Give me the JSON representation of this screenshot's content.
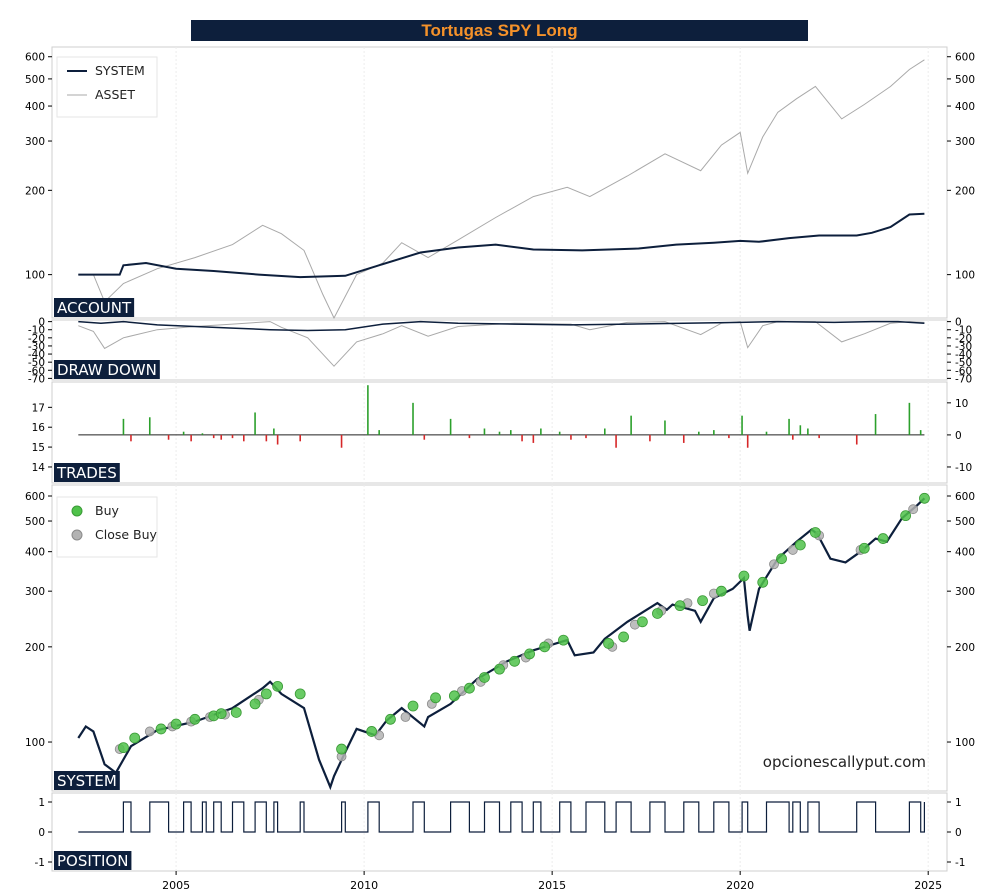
{
  "title": "Tortugas SPY Long",
  "watermark": "opcionescallyput.com",
  "colors": {
    "navy": "#0d1f3c",
    "asset_gray": "#a9a9a9",
    "title_orange": "#f5922a",
    "trade_green": "#2ca02c",
    "trade_red": "#d62728",
    "buy_marker": "#4fc24a",
    "close_marker": "#b3b3b3"
  },
  "x_axis": {
    "tick_labels": [
      "2005",
      "2010",
      "2015",
      "2020",
      "2025"
    ]
  },
  "chart_data": [
    {
      "type": "line",
      "panel_label": "ACCOUNT",
      "scale": "log",
      "y_ticks": [
        100,
        200,
        300,
        400,
        500,
        600
      ],
      "ylim": [
        70,
        650
      ],
      "legend": {
        "position": "top-left",
        "entries": [
          "SYSTEM",
          "ASSET"
        ]
      },
      "series": [
        {
          "name": "SYSTEM",
          "x": [
            2002.4,
            2003.5,
            2003.6,
            2004.2,
            2005,
            2006,
            2007.2,
            2008.3,
            2009.5,
            2010.3,
            2011.5,
            2012.5,
            2013.5,
            2014.5,
            2015.8,
            2017.3,
            2018.3,
            2019.3,
            2020,
            2020.5,
            2021.3,
            2022.1,
            2023.1,
            2023.5,
            2024,
            2024.5,
            2024.9
          ],
          "y": [
            100,
            100,
            108,
            110,
            105,
            103,
            100,
            98,
            99,
            107,
            120,
            125,
            128,
            123,
            122,
            124,
            128,
            130,
            132,
            131,
            135,
            138,
            138,
            141,
            148,
            164,
            165
          ]
        },
        {
          "name": "ASSET",
          "x": [
            2002.4,
            2002.8,
            2003.1,
            2003.6,
            2004.5,
            2005.5,
            2006.5,
            2007.3,
            2007.8,
            2008.4,
            2008.9,
            2009.2,
            2009.8,
            2010.5,
            2011,
            2011.7,
            2012.5,
            2013.5,
            2014.5,
            2015.4,
            2016,
            2017,
            2018,
            2018.95,
            2019.5,
            2020,
            2020.2,
            2020.6,
            2021,
            2021.5,
            2022,
            2022.7,
            2023.3,
            2024,
            2024.5,
            2024.9
          ],
          "y": [
            100,
            100,
            80,
            93,
            105,
            115,
            128,
            150,
            140,
            122,
            85,
            70,
            100,
            110,
            130,
            115,
            133,
            160,
            190,
            205,
            190,
            225,
            270,
            235,
            290,
            322,
            230,
            310,
            380,
            425,
            470,
            360,
            405,
            470,
            540,
            585
          ]
        }
      ]
    },
    {
      "type": "line",
      "panel_label": "DRAW DOWN",
      "scale": "linear",
      "y_ticks": [
        0,
        -10,
        -20,
        -30,
        -40,
        -50,
        -60,
        -70
      ],
      "ylim": [
        -72,
        2
      ],
      "series": [
        {
          "name": "SYSTEM",
          "x": [
            2002.4,
            2003,
            2003.6,
            2004.5,
            2005.5,
            2006.5,
            2007.5,
            2008.5,
            2009.5,
            2010.5,
            2011.5,
            2012.5,
            2014,
            2015.5,
            2017,
            2018.5,
            2020,
            2021,
            2022.5,
            2023.5,
            2024.2,
            2024.9
          ],
          "y": [
            0,
            -2,
            0,
            -4,
            -6,
            -8,
            -10,
            -11,
            -10,
            -3,
            0,
            -2,
            -3,
            -4,
            -3,
            -2,
            -1,
            0,
            -1,
            0,
            0,
            -2
          ]
        },
        {
          "name": "ASSET",
          "x": [
            2002.4,
            2002.8,
            2003.1,
            2003.6,
            2004.5,
            2005.5,
            2006.5,
            2007.5,
            2007.8,
            2008.5,
            2009.2,
            2009.8,
            2010.5,
            2011,
            2011.7,
            2012.5,
            2014,
            2015.5,
            2016,
            2017,
            2018,
            2018.95,
            2019.5,
            2020,
            2020.2,
            2020.6,
            2021,
            2022,
            2022.7,
            2023.3,
            2024,
            2024.5,
            2024.9
          ],
          "y": [
            -5,
            -12,
            -33,
            -20,
            -10,
            -6,
            -3,
            0,
            -7,
            -20,
            -55,
            -25,
            -15,
            -5,
            -18,
            -6,
            -2,
            -3,
            -10,
            -1,
            0,
            -16,
            -2,
            0,
            -32,
            -5,
            0,
            0,
            -25,
            -15,
            -2,
            0,
            -1
          ]
        }
      ]
    },
    {
      "type": "bar",
      "panel_label": "TRADES",
      "left_y_ticks": [
        14,
        15,
        16,
        17
      ],
      "right_y_ticks": [
        10,
        0,
        -10
      ],
      "ylim": [
        -15,
        16.5
      ],
      "x": [
        2003.6,
        2003.8,
        2004.3,
        2004.8,
        2005.2,
        2005.4,
        2005.7,
        2006,
        2006.2,
        2006.5,
        2006.8,
        2007.1,
        2007.4,
        2007.6,
        2007.7,
        2008.3,
        2009.4,
        2010.1,
        2010.4,
        2011.3,
        2011.6,
        2012.3,
        2012.8,
        2013.2,
        2013.6,
        2013.9,
        2014.2,
        2014.5,
        2014.7,
        2015.2,
        2015.5,
        2015.9,
        2016.4,
        2016.7,
        2017.1,
        2017.6,
        2018,
        2018.5,
        2018.9,
        2019.3,
        2019.7,
        2020.05,
        2020.2,
        2020.7,
        2021.3,
        2021.4,
        2021.6,
        2021.8,
        2022.1,
        2023.1,
        2023.6,
        2024.5,
        2024.8
      ],
      "values": [
        5,
        -2,
        5.5,
        -1.5,
        1,
        -2,
        0.5,
        -1,
        -1.5,
        -1,
        -2,
        7,
        -2,
        2,
        -3,
        -2,
        -4,
        15.5,
        1.5,
        10,
        -1.5,
        5,
        -1,
        2,
        1,
        1.5,
        -2,
        -2.5,
        2,
        1,
        -1.5,
        -1,
        2,
        -4,
        6,
        -2,
        4.5,
        -2.5,
        1,
        1.5,
        -1,
        6,
        -4,
        1,
        5,
        -1.5,
        3,
        2,
        -1,
        -3,
        6.5,
        10,
        1.5
      ]
    },
    {
      "type": "line",
      "panel_label": "SYSTEM",
      "scale": "log",
      "y_ticks": [
        100,
        200,
        300,
        400,
        500,
        600
      ],
      "ylim": [
        70,
        650
      ],
      "legend": {
        "position": "top-left",
        "entries": [
          "Buy",
          "Close Buy"
        ]
      },
      "series": [
        {
          "name": "SPY",
          "x": [
            2002.4,
            2002.6,
            2002.8,
            2003.1,
            2003.4,
            2003.8,
            2004.5,
            2005.5,
            2006.5,
            2007.3,
            2007.5,
            2007.8,
            2008.4,
            2008.8,
            2009.1,
            2009.2,
            2009.5,
            2009.8,
            2010.3,
            2010.6,
            2011,
            2011.6,
            2011.7,
            2012.3,
            2013,
            2013.8,
            2014.5,
            2015.4,
            2015.6,
            2016.1,
            2016.4,
            2017,
            2017.8,
            2018.05,
            2018.2,
            2018.8,
            2018.95,
            2019.3,
            2019.8,
            2020.1,
            2020.2,
            2020.25,
            2020.5,
            2021,
            2021.5,
            2021.9,
            2022.05,
            2022.4,
            2022.8,
            2023.2,
            2023.6,
            2023.9,
            2024.3,
            2024.7,
            2024.9
          ],
          "y": [
            103,
            112,
            108,
            85,
            80,
            97,
            109,
            116,
            128,
            148,
            155,
            142,
            128,
            88,
            72,
            78,
            93,
            110,
            105,
            117,
            128,
            112,
            120,
            132,
            158,
            180,
            195,
            210,
            188,
            192,
            212,
            240,
            275,
            262,
            272,
            260,
            240,
            285,
            305,
            330,
            250,
            225,
            305,
            380,
            430,
            470,
            455,
            380,
            370,
            400,
            440,
            430,
            510,
            560,
            590
          ]
        },
        {
          "name": "Buy",
          "x": [
            2003.6,
            2003.9,
            2004.6,
            2005,
            2005.5,
            2006,
            2006.2,
            2006.6,
            2007.1,
            2007.4,
            2007.7,
            2008.3,
            2009.4,
            2010.2,
            2010.7,
            2011.3,
            2011.9,
            2012.4,
            2012.8,
            2013.2,
            2013.6,
            2014,
            2014.4,
            2014.8,
            2015.3,
            2016.5,
            2016.9,
            2017.4,
            2017.8,
            2018.4,
            2019,
            2019.5,
            2020.1,
            2020.6,
            2021.1,
            2021.6,
            2022,
            2023.3,
            2023.8,
            2024.4,
            2024.9
          ],
          "y": [
            96,
            103,
            110,
            114,
            118,
            121,
            123,
            124,
            132,
            142,
            150,
            142,
            95,
            108,
            118,
            130,
            138,
            140,
            148,
            160,
            170,
            180,
            190,
            200,
            210,
            205,
            215,
            240,
            255,
            270,
            280,
            300,
            335,
            320,
            380,
            420,
            460,
            410,
            440,
            520,
            590
          ]
        },
        {
          "name": "Close Buy",
          "x": [
            2003.5,
            2004.3,
            2004.9,
            2005.4,
            2005.9,
            2006.3,
            2007.2,
            2009.4,
            2010.4,
            2011.1,
            2011.8,
            2012.6,
            2013.1,
            2013.7,
            2014.3,
            2014.9,
            2016.6,
            2017.2,
            2017.9,
            2018.6,
            2019.3,
            2020.9,
            2021.4,
            2022.1,
            2023.2,
            2024.6
          ],
          "y": [
            95,
            108,
            112,
            116,
            120,
            122,
            136,
            90,
            105,
            120,
            132,
            145,
            155,
            175,
            185,
            205,
            200,
            235,
            260,
            275,
            295,
            365,
            405,
            450,
            405,
            545
          ]
        }
      ]
    },
    {
      "type": "line",
      "panel_label": "POSITION",
      "step": true,
      "y_ticks": [
        1,
        0,
        -1
      ],
      "ylim": [
        -1.3,
        1.3
      ],
      "series": [
        {
          "name": "POSITION",
          "x": [
            2002.4,
            2003.6,
            2003.8,
            2004.3,
            2004.8,
            2005.2,
            2005.4,
            2005.7,
            2005.8,
            2006,
            2006.2,
            2006.5,
            2006.8,
            2007.1,
            2007.4,
            2007.6,
            2007.7,
            2008.3,
            2008.4,
            2009.4,
            2009.5,
            2010.1,
            2010.4,
            2011.3,
            2011.6,
            2012.3,
            2012.8,
            2013.2,
            2013.6,
            2013.9,
            2014.2,
            2014.5,
            2014.7,
            2015.2,
            2015.5,
            2015.9,
            2016.4,
            2016.7,
            2017.1,
            2017.6,
            2018,
            2018.5,
            2018.9,
            2019.3,
            2019.7,
            2020.05,
            2020.2,
            2020.7,
            2021.3,
            2021.4,
            2021.6,
            2021.8,
            2022.1,
            2023.1,
            2023.6,
            2024.5,
            2024.8,
            2024.9
          ],
          "y": [
            0,
            1,
            0,
            1,
            0,
            1,
            0,
            1,
            0,
            1,
            0,
            1,
            0,
            1,
            0,
            1,
            0,
            1,
            0,
            1,
            0,
            1,
            0,
            1,
            0,
            1,
            0,
            1,
            0,
            1,
            0,
            1,
            0,
            1,
            0,
            1,
            0,
            1,
            0,
            1,
            0,
            1,
            0,
            1,
            0,
            1,
            0,
            1,
            0,
            1,
            0,
            1,
            0,
            1,
            0,
            1,
            0,
            1
          ]
        }
      ]
    }
  ]
}
